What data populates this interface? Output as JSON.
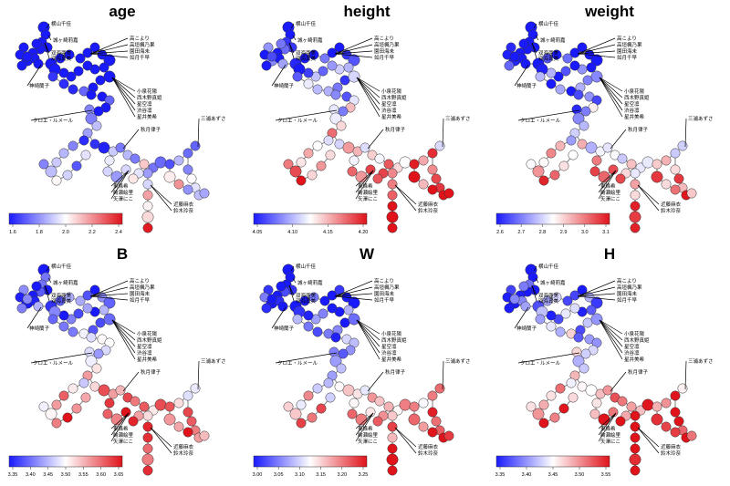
{
  "panels": [
    {
      "title": "age",
      "ticks": [
        "1.6",
        "1.8",
        "2.0",
        "2.2",
        "2.4"
      ],
      "seed": 11,
      "bias": -0.55
    },
    {
      "title": "height",
      "ticks": [
        "4.05",
        "4.10",
        "4.15",
        "4.20"
      ],
      "seed": 23,
      "bias": 0.05
    },
    {
      "title": "weight",
      "ticks": [
        "2.6",
        "2.7",
        "2.8",
        "2.9",
        "3.0",
        "3.1"
      ],
      "seed": 37,
      "bias": -0.15
    },
    {
      "title": "B",
      "ticks": [
        "3.35",
        "3.40",
        "3.45",
        "3.50",
        "3.55",
        "3.60",
        "3.65"
      ],
      "seed": 41,
      "bias": 0.0
    },
    {
      "title": "W",
      "ticks": [
        "3.00",
        "3.05",
        "3.10",
        "3.15",
        "3.20",
        "3.25"
      ],
      "seed": 53,
      "bias": -0.05
    },
    {
      "title": "H",
      "ticks": [
        "3.35",
        "3.40",
        "3.45",
        "3.50",
        "3.55"
      ],
      "seed": 67,
      "bias": 0.15
    }
  ],
  "annotations": [
    {
      "text": "横山千佳"
    },
    {
      "text": "城ヶ崎莉嘉"
    },
    {
      "text": "双海亜美"
    },
    {
      "text": "双海真美"
    },
    {
      "text": "高こより"
    },
    {
      "text": "高垣楓乃果"
    },
    {
      "text": "園田海未"
    },
    {
      "text": "如月千早"
    },
    {
      "text": "神崎蘭子"
    },
    {
      "text": "小泉花陽"
    },
    {
      "text": "西木野真姫"
    },
    {
      "text": "星空凛"
    },
    {
      "text": "渋谷凛"
    },
    {
      "text": "星井美希"
    },
    {
      "text": "クロエ・ルメール"
    },
    {
      "text": "三浦あずさ"
    },
    {
      "text": "秋月律子"
    },
    {
      "text": "東條希"
    },
    {
      "text": "絢瀬絵里"
    },
    {
      "text": "矢澤にこ"
    },
    {
      "text": "近藤麻衣"
    },
    {
      "text": "鈴木玲奈"
    }
  ],
  "colors": {
    "low": "#1a1aff",
    "mid": "#ffffff",
    "high": "#e0121a",
    "edge": "#8a8a8a"
  }
}
